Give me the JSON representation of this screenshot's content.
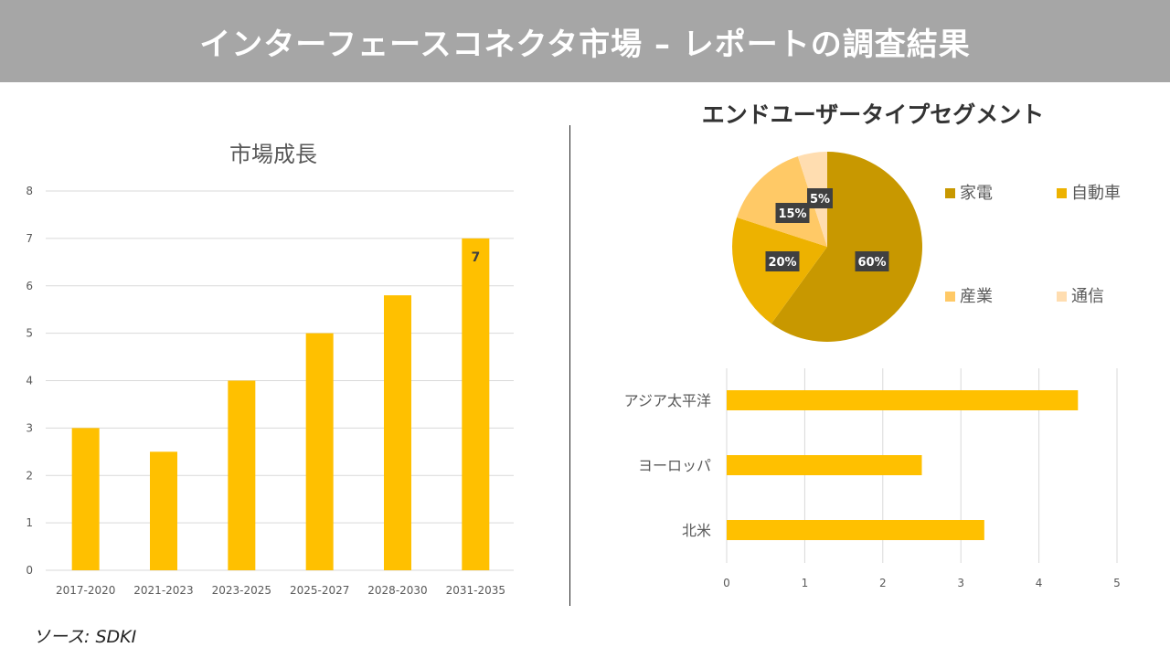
{
  "header": {
    "title": "インターフェースコネクタ市場 – レポートの調査結果"
  },
  "source": "ソース: SDKI",
  "chart_data": [
    {
      "type": "bar",
      "title": "市場成長",
      "categories": [
        "2017-2020",
        "2021-2023",
        "2023-2025",
        "2025-2027",
        "2028-2030",
        "2031-2035"
      ],
      "values": [
        3,
        2.5,
        4,
        5,
        5.8,
        7
      ],
      "data_labels": {
        "2031-2035": "7"
      },
      "ylim": [
        0,
        8
      ],
      "yticks": [
        "0",
        "1",
        "2",
        "3",
        "4",
        "5",
        "6",
        "7",
        "8"
      ],
      "grid": true,
      "color": "#FFC000"
    },
    {
      "type": "pie",
      "title": "エンドユーザータイプセグメント",
      "categories": [
        "家電",
        "自動車",
        "産業",
        "通信"
      ],
      "values": [
        60,
        20,
        15,
        5
      ],
      "labels": [
        "60%",
        "20%",
        "15%",
        "5%"
      ],
      "colors": [
        "#C89800",
        "#EDB200",
        "#FFC966",
        "#FFDDB0"
      ],
      "legend": "right"
    },
    {
      "type": "bar",
      "orientation": "horizontal",
      "categories": [
        "アジア太平洋",
        "ヨーロッパ",
        "北米"
      ],
      "values": [
        4.5,
        2.5,
        3.3
      ],
      "xlim": [
        0,
        5
      ],
      "xticks": [
        "0",
        "1",
        "2",
        "3",
        "4",
        "5"
      ],
      "grid": true,
      "color": "#FFC000"
    }
  ]
}
